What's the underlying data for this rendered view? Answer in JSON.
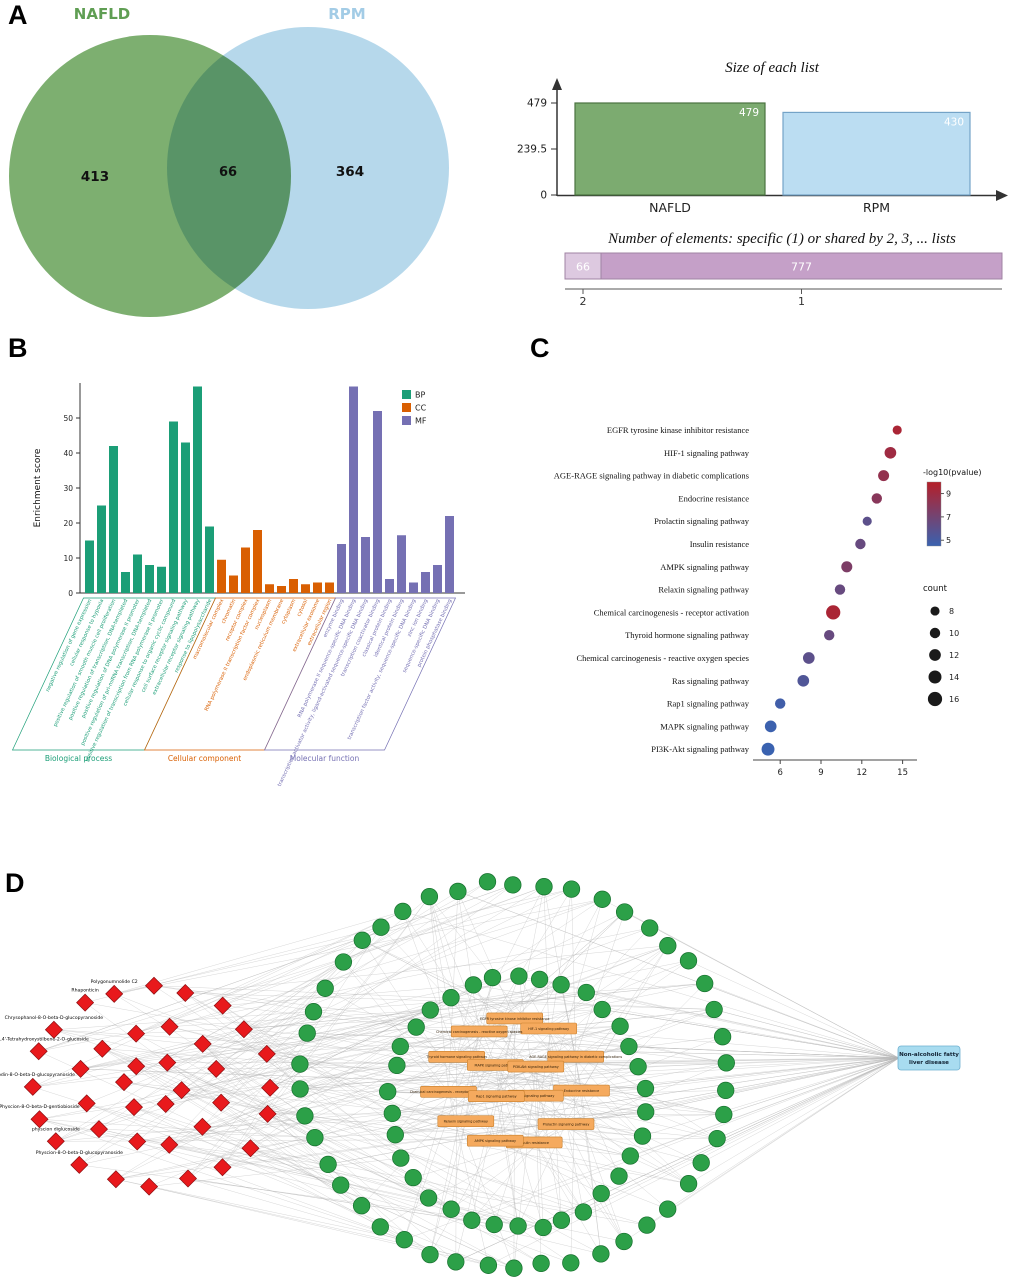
{
  "panel_labels": {
    "a": "A",
    "b": "B",
    "c": "C",
    "d": "D"
  },
  "chart_data": [
    {
      "id": "venn",
      "type": "venn",
      "sets": [
        {
          "label": "NAFLD",
          "color": "#6fa661",
          "unique": 413
        },
        {
          "label": "RPM",
          "color": "#a9d1e8",
          "unique": 364
        }
      ],
      "overlap": 66,
      "left_count": "413",
      "overlap_count": "66",
      "right_count": "364"
    },
    {
      "id": "size_of_each_list",
      "type": "bar",
      "title": "Size of each list",
      "categories": [
        "NAFLD",
        "RPM"
      ],
      "values": [
        479,
        430
      ],
      "ymax": 479,
      "yticks": [
        "479",
        "239.5",
        "0"
      ],
      "bar_fills": [
        "#7cab70",
        "#bbddf2"
      ],
      "bar_strokes": [
        "#4a7340",
        "#74a3c7"
      ],
      "value_label_color": "#ffffff"
    },
    {
      "id": "shared_elements",
      "type": "bar",
      "title": "Number of elements: specific (1) or shared by 2, 3, ... lists",
      "segments": [
        {
          "label": "66",
          "tick": "2",
          "fill": "#ddc9e0",
          "value": 66
        },
        {
          "label": "777",
          "tick": "1",
          "fill": "#c5a0c8",
          "value": 777
        }
      ],
      "stroke": "#a083a3"
    },
    {
      "id": "go_enrichment",
      "type": "bar",
      "ylabel": "Enrichment score",
      "yticks": [
        "0",
        "10",
        "20",
        "30",
        "40",
        "50"
      ],
      "legend": [
        {
          "label": "BP",
          "color": "#1b9e77"
        },
        {
          "label": "CC",
          "color": "#d95f02"
        },
        {
          "label": "MF",
          "color": "#7570b3"
        }
      ],
      "groups": [
        {
          "name": "Biological process",
          "color": "#1b9e77",
          "terms": [
            "negative regulation of gene expression",
            "cellular response to hypoxia",
            "positive regulation of smooth muscle cell proliferation",
            "positive regulation of transcription, DNA-templated",
            "positive regulation of DNA polymerase II promoter",
            "positive regulation of pri-miRNA transcription, DNA-templated",
            "positive regulation of transcription from RNA polymerase II promoter",
            "cellular response to organic cyclic compound",
            "cell surface receptor signaling pathway",
            "extracellular receptor signaling pathway",
            "response to lipopolysaccharide"
          ],
          "values": [
            15,
            25,
            42,
            6,
            11,
            8,
            7.5,
            49,
            43,
            59,
            19
          ]
        },
        {
          "name": "Cellular component",
          "color": "#d95f02",
          "terms": [
            "macromolecular complex",
            "chromatin",
            "receptor complex",
            "RNA polymerase II transcription factor complex",
            "nucleoplasm",
            "endoplasmic reticulum membrane",
            "cytoplasm",
            "cytosol",
            "extracellular exosome",
            "extracellular region"
          ],
          "values": [
            9.5,
            5,
            13,
            18,
            2.5,
            2,
            4,
            2.5,
            3,
            3
          ]
        },
        {
          "name": "Molecular function",
          "color": "#7570b3",
          "terms": [
            "enzyme binding",
            "RNA polymerase II sequence-specific DNA binding",
            "transcription activator activity, ligand-activated sequence-specific DNA binding",
            "transcription coactivator binding",
            "classical protein binding",
            "identical protein binding",
            "transcription factor activity, sequence-specific DNA binding",
            "zinc ion binding",
            "sequence-specific DNA binding",
            "protein phosphatase binding"
          ],
          "values": [
            14,
            59,
            16,
            52,
            4,
            16.5,
            3,
            6,
            8,
            22
          ]
        }
      ]
    },
    {
      "id": "kegg_dotplot",
      "type": "scatter",
      "xticks": [
        "6",
        "9",
        "12",
        "15"
      ],
      "xlim": [
        4,
        15.8
      ],
      "color_legend": {
        "title": "-log10(pvalue)",
        "ticks": [
          "9",
          "7",
          "5"
        ],
        "high_color": "#b51f29",
        "low_color": "#3a62b0"
      },
      "size_legend": {
        "title": "count",
        "sizes": [
          8,
          10,
          12,
          14,
          16
        ]
      },
      "points": [
        {
          "pathway": "EGFR tyrosine kinase inhibitor resistance",
          "x": 14.6,
          "pvalue": 9.5,
          "count": 8
        },
        {
          "pathway": "HIF-1 signaling pathway",
          "x": 14.1,
          "pvalue": 9.0,
          "count": 12
        },
        {
          "pathway": "AGE-RAGE signaling pathway in diabetic complications",
          "x": 13.6,
          "pvalue": 8.5,
          "count": 11
        },
        {
          "pathway": "Endocrine resistance",
          "x": 13.1,
          "pvalue": 8.0,
          "count": 10
        },
        {
          "pathway": "Prolactin signaling pathway",
          "x": 12.4,
          "pvalue": 6.0,
          "count": 8
        },
        {
          "pathway": "Insulin resistance",
          "x": 11.9,
          "pvalue": 6.5,
          "count": 10
        },
        {
          "pathway": "AMPK signaling pathway",
          "x": 10.9,
          "pvalue": 7.5,
          "count": 11
        },
        {
          "pathway": "Relaxin signaling pathway",
          "x": 10.4,
          "pvalue": 6.5,
          "count": 10
        },
        {
          "pathway": "Chemical carcinogenesis - receptor activation",
          "x": 9.9,
          "pvalue": 9.5,
          "count": 16
        },
        {
          "pathway": "Thyroid hormone signaling pathway",
          "x": 9.6,
          "pvalue": 6.5,
          "count": 10
        },
        {
          "pathway": "Chemical carcinogenesis - reactive oxygen species",
          "x": 8.1,
          "pvalue": 6.0,
          "count": 12
        },
        {
          "pathway": "Ras signaling pathway",
          "x": 7.7,
          "pvalue": 5.5,
          "count": 12
        },
        {
          "pathway": "Rap1 signaling pathway",
          "x": 6.0,
          "pvalue": 4.8,
          "count": 10
        },
        {
          "pathway": "MAPK signaling pathway",
          "x": 5.3,
          "pvalue": 4.6,
          "count": 12
        },
        {
          "pathway": "PI3K-Akt signaling pathway",
          "x": 5.1,
          "pvalue": 4.5,
          "count": 14
        }
      ]
    },
    {
      "id": "network",
      "type": "network",
      "disease_node": {
        "label": "Non-alcoholic fatty liver disease",
        "lines": [
          "Non-alcoholic fatty",
          "liver disease"
        ],
        "fill": "#a8dcf0",
        "stroke": "#6fb0d0"
      },
      "compound_fill": "#e8191c",
      "compound_stroke": "#8c0d10",
      "target_fill": "#2ca048",
      "target_stroke": "#17702e",
      "pathway_fill": "#f5aa5e",
      "pathway_stroke": "#c9812f",
      "edge_color": "#b5b5b5",
      "compound_counts": {
        "outer": 20,
        "inner": 12,
        "core": 6
      },
      "target_counts": {
        "outer": 46,
        "inner": 34
      },
      "compound_labels": [
        "Physcion-8-O-beta-D-glucopyranoside",
        "physcion diglucoside",
        "Physcion-8-O-beta-D-gentiobioside",
        "Emodin-8-O-beta-D-glucopyranoside",
        "2,3,5,4'-Tetrahydroxystilbene-2-O-glucoside",
        "Chrysophanol-8-O-beta-D-glucopyranoside",
        "Rhaponticin",
        "Polygonumnolide C2"
      ],
      "pathway_labels": [
        "EGFR tyrosine kinase inhibitor resistance",
        "HIF-1 signaling pathway",
        "AGE-RAGE signaling pathway in diabetic complications",
        "Endocrine resistance",
        "Prolactin signaling pathway",
        "Insulin resistance",
        "AMPK signaling pathway",
        "Relaxin signaling pathway",
        "Chemical carcinogenesis - receptor activation",
        "Thyroid hormone signaling pathway",
        "Chemical carcinogenesis - reactive oxygen species",
        "Ras signaling pathway",
        "Rap1 signaling pathway",
        "MAPK signaling pathway",
        "PI3K-Akt signaling pathway"
      ]
    }
  ]
}
